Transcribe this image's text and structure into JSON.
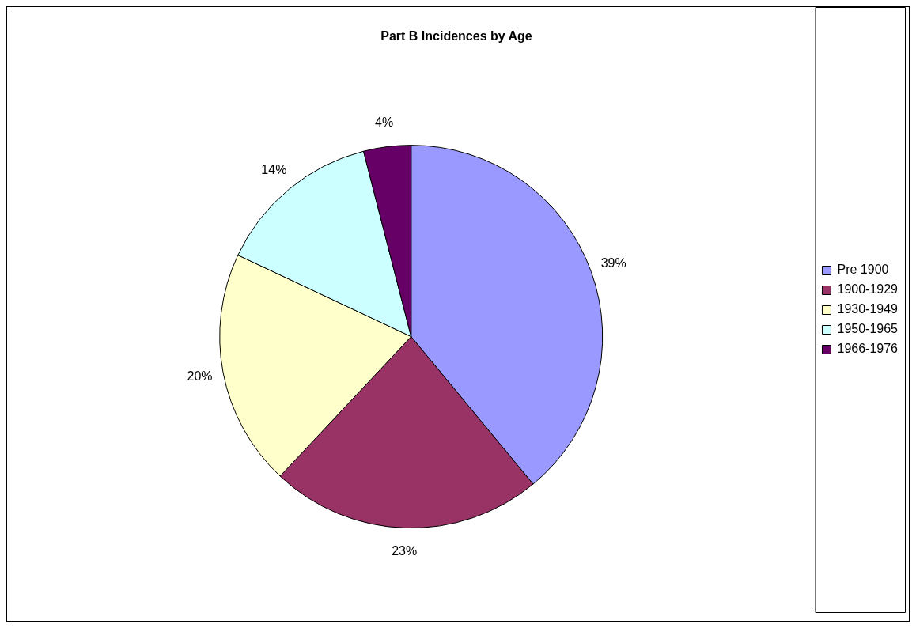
{
  "chart_data": {
    "type": "pie",
    "title": "Part B Incidences by Age",
    "categories": [
      "Pre 1900",
      "1900-1929",
      "1930-1949",
      "1950-1965",
      "1966-1976"
    ],
    "values": [
      39,
      23,
      20,
      14,
      4
    ],
    "value_labels": [
      "39%",
      "23%",
      "20%",
      "14%",
      "4%"
    ],
    "colors": [
      "#9999ff",
      "#993366",
      "#ffffcc",
      "#ccffff",
      "#660066"
    ],
    "legend": "right"
  }
}
